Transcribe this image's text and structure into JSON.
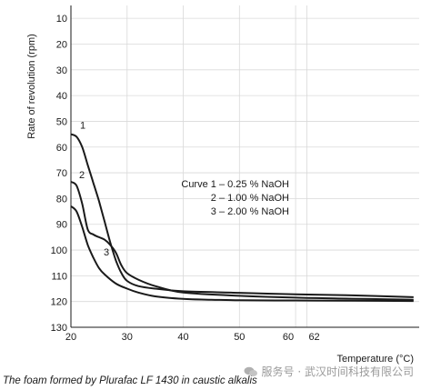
{
  "chart_data": {
    "type": "line",
    "title": "",
    "xlabel": "Temperature (°C)",
    "ylabel": "Rate of revolution (rpm)",
    "xlim": [
      20,
      82
    ],
    "ylim": [
      5,
      130
    ],
    "y_inverted": true,
    "x_ticks": [
      20,
      30,
      40,
      50,
      60,
      62
    ],
    "x_tick_labels": [
      "20",
      "30",
      "40",
      "50",
      "60",
      "62"
    ],
    "y_ticks": [
      10,
      20,
      30,
      40,
      50,
      60,
      70,
      80,
      90,
      100,
      110,
      120,
      130
    ],
    "grid": true,
    "series": [
      {
        "name": "Curve 1 – 0.25 % NaOH",
        "label": "1",
        "x": [
          20,
          21,
          22,
          23,
          24,
          25,
          26,
          27,
          28,
          29,
          30,
          32,
          35,
          40,
          50,
          60,
          70,
          81
        ],
        "y": [
          55,
          56,
          60,
          67,
          74,
          81,
          89,
          97,
          104,
          109,
          112,
          114,
          115,
          116,
          116.6,
          117.2,
          117.6,
          118.3
        ]
      },
      {
        "name": "2 – 1.00 % NaOH",
        "label": "2",
        "x": [
          20,
          21,
          22,
          23,
          24,
          25,
          26,
          27,
          28,
          29,
          30,
          32,
          35,
          40,
          50,
          60,
          70,
          81
        ],
        "y": [
          73.5,
          75,
          82,
          92,
          94,
          95,
          96,
          98,
          101,
          106,
          109,
          111.5,
          114,
          116.5,
          117.8,
          118.5,
          118.9,
          119.3
        ]
      },
      {
        "name": "3 – 2.00 % NaOH",
        "label": "3",
        "x": [
          20,
          21,
          22,
          23,
          24,
          25,
          26,
          28,
          30,
          32,
          35,
          40,
          45,
          50,
          60,
          70,
          81
        ],
        "y": [
          83,
          85,
          91,
          98,
          103,
          107,
          109.5,
          113,
          115,
          116.5,
          118,
          119,
          119.3,
          119.5,
          119.6,
          119.7,
          119.8
        ]
      }
    ],
    "legend": [
      "Curve 1 – 0.25 % NaOH",
      "2 – 1.00 % NaOH",
      "3 – 2.00 % NaOH"
    ],
    "legend_placement": "center-right"
  },
  "caption": "The foam formed by Plurafac LF 1430 in caustic alkalis",
  "watermark": {
    "text": "服务号 · 武汉时间科技有限公司",
    "icon": "wechat-icon"
  },
  "colors": {
    "background": "#ffffff",
    "line": "#1a1a1a",
    "grid": "#d9d9d9",
    "axis": "#1a1a1a",
    "watermark": "#9a9a9a"
  }
}
